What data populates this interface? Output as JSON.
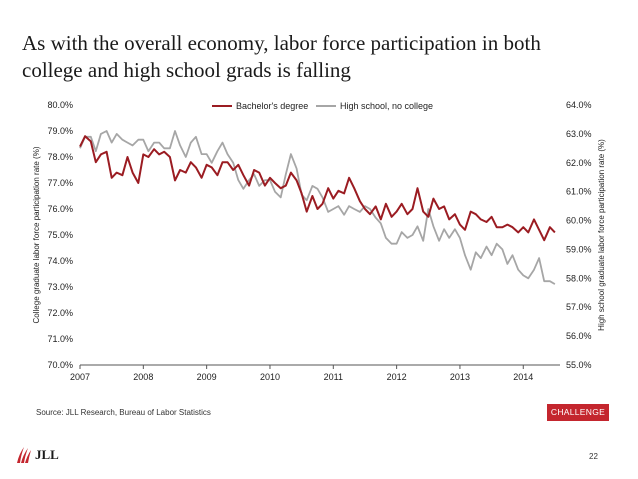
{
  "slide": {
    "title": "As with the overall economy, labor force participation in both\ncollege and high school grads is falling",
    "source": "Source: JLL Research, Bureau of Labor Statistics",
    "badge": "CHALLENGE",
    "logo_text": "JLL",
    "page_number": "22"
  },
  "chart_data": {
    "type": "line",
    "title": "",
    "xlabel": "",
    "ylabel_left": "College graduate labor force participation rate (%)",
    "ylabel_right": "High school graduate labor force participation rate (%)",
    "x_ticks": [
      "2007",
      "2008",
      "2009",
      "2010",
      "2011",
      "2012",
      "2013",
      "2014"
    ],
    "y_left_range": [
      70,
      80
    ],
    "y_left_ticks": [
      "70.0%",
      "71.0%",
      "72.0%",
      "73.0%",
      "74.0%",
      "75.0%",
      "76.0%",
      "77.0%",
      "78.0%",
      "79.0%",
      "80.0%"
    ],
    "y_right_range": [
      55,
      64
    ],
    "y_right_ticks": [
      "55.0%",
      "56.0%",
      "57.0%",
      "58.0%",
      "59.0%",
      "60.0%",
      "61.0%",
      "62.0%",
      "63.0%",
      "64.0%"
    ],
    "grid": false,
    "legend_position": "top-center",
    "series": [
      {
        "name": "Bachelor's degree",
        "axis": "left",
        "color": "#9b1c22",
        "points": [
          [
            2007.0,
            78.4
          ],
          [
            2007.08,
            78.8
          ],
          [
            2007.17,
            78.6
          ],
          [
            2007.25,
            77.8
          ],
          [
            2007.33,
            78.1
          ],
          [
            2007.42,
            78.2
          ],
          [
            2007.5,
            77.2
          ],
          [
            2007.58,
            77.4
          ],
          [
            2007.67,
            77.3
          ],
          [
            2007.75,
            78.0
          ],
          [
            2007.83,
            77.4
          ],
          [
            2007.92,
            77.0
          ],
          [
            2008.0,
            78.1
          ],
          [
            2008.08,
            78.0
          ],
          [
            2008.17,
            78.3
          ],
          [
            2008.25,
            78.1
          ],
          [
            2008.33,
            78.2
          ],
          [
            2008.42,
            78.0
          ],
          [
            2008.5,
            77.1
          ],
          [
            2008.58,
            77.5
          ],
          [
            2008.67,
            77.4
          ],
          [
            2008.75,
            77.8
          ],
          [
            2008.83,
            77.6
          ],
          [
            2008.92,
            77.2
          ],
          [
            2009.0,
            77.7
          ],
          [
            2009.08,
            77.6
          ],
          [
            2009.17,
            77.3
          ],
          [
            2009.25,
            77.8
          ],
          [
            2009.33,
            77.8
          ],
          [
            2009.42,
            77.5
          ],
          [
            2009.5,
            77.7
          ],
          [
            2009.58,
            77.3
          ],
          [
            2009.67,
            76.9
          ],
          [
            2009.75,
            77.5
          ],
          [
            2009.83,
            77.4
          ],
          [
            2009.92,
            76.9
          ],
          [
            2010.0,
            77.2
          ],
          [
            2010.08,
            77.0
          ],
          [
            2010.17,
            76.8
          ],
          [
            2010.25,
            76.9
          ],
          [
            2010.33,
            77.4
          ],
          [
            2010.42,
            77.1
          ],
          [
            2010.5,
            76.6
          ],
          [
            2010.58,
            75.9
          ],
          [
            2010.67,
            76.5
          ],
          [
            2010.75,
            76.0
          ],
          [
            2010.83,
            76.2
          ],
          [
            2010.92,
            76.8
          ],
          [
            2011.0,
            76.4
          ],
          [
            2011.08,
            76.7
          ],
          [
            2011.17,
            76.6
          ],
          [
            2011.25,
            77.2
          ],
          [
            2011.33,
            76.8
          ],
          [
            2011.42,
            76.3
          ],
          [
            2011.5,
            76.0
          ],
          [
            2011.58,
            75.8
          ],
          [
            2011.67,
            76.1
          ],
          [
            2011.75,
            75.6
          ],
          [
            2011.83,
            76.2
          ],
          [
            2011.92,
            75.7
          ],
          [
            2012.0,
            75.9
          ],
          [
            2012.08,
            76.2
          ],
          [
            2012.17,
            75.8
          ],
          [
            2012.25,
            76.0
          ],
          [
            2012.33,
            76.8
          ],
          [
            2012.42,
            75.9
          ],
          [
            2012.5,
            75.7
          ],
          [
            2012.58,
            76.4
          ],
          [
            2012.67,
            76.0
          ],
          [
            2012.75,
            76.1
          ],
          [
            2012.83,
            75.6
          ],
          [
            2012.92,
            75.8
          ],
          [
            2013.0,
            75.4
          ],
          [
            2013.08,
            75.2
          ],
          [
            2013.17,
            75.9
          ],
          [
            2013.25,
            75.8
          ],
          [
            2013.33,
            75.6
          ],
          [
            2013.42,
            75.5
          ],
          [
            2013.5,
            75.7
          ],
          [
            2013.58,
            75.3
          ],
          [
            2013.67,
            75.3
          ],
          [
            2013.75,
            75.4
          ],
          [
            2013.83,
            75.3
          ],
          [
            2013.92,
            75.1
          ],
          [
            2014.0,
            75.3
          ],
          [
            2014.08,
            75.1
          ],
          [
            2014.17,
            75.6
          ],
          [
            2014.25,
            75.2
          ],
          [
            2014.33,
            74.8
          ],
          [
            2014.42,
            75.3
          ],
          [
            2014.5,
            75.1
          ]
        ]
      },
      {
        "name": "High school, no college",
        "axis": "right",
        "color": "#a6a6a6",
        "points": [
          [
            2007.0,
            62.5
          ],
          [
            2007.08,
            62.9
          ],
          [
            2007.17,
            62.9
          ],
          [
            2007.25,
            62.4
          ],
          [
            2007.33,
            63.0
          ],
          [
            2007.42,
            63.1
          ],
          [
            2007.5,
            62.7
          ],
          [
            2007.58,
            63.0
          ],
          [
            2007.67,
            62.8
          ],
          [
            2007.75,
            62.7
          ],
          [
            2007.83,
            62.6
          ],
          [
            2007.92,
            62.8
          ],
          [
            2008.0,
            62.8
          ],
          [
            2008.08,
            62.4
          ],
          [
            2008.17,
            62.7
          ],
          [
            2008.25,
            62.7
          ],
          [
            2008.33,
            62.5
          ],
          [
            2008.42,
            62.5
          ],
          [
            2008.5,
            63.1
          ],
          [
            2008.58,
            62.6
          ],
          [
            2008.67,
            62.2
          ],
          [
            2008.75,
            62.7
          ],
          [
            2008.83,
            62.9
          ],
          [
            2008.92,
            62.3
          ],
          [
            2009.0,
            62.3
          ],
          [
            2009.08,
            62.0
          ],
          [
            2009.17,
            62.4
          ],
          [
            2009.25,
            62.7
          ],
          [
            2009.33,
            62.3
          ],
          [
            2009.42,
            62.0
          ],
          [
            2009.5,
            61.4
          ],
          [
            2009.58,
            61.1
          ],
          [
            2009.67,
            61.4
          ],
          [
            2009.75,
            61.6
          ],
          [
            2009.83,
            61.2
          ],
          [
            2009.92,
            61.4
          ],
          [
            2010.0,
            61.4
          ],
          [
            2010.08,
            61.0
          ],
          [
            2010.17,
            60.8
          ],
          [
            2010.25,
            61.6
          ],
          [
            2010.33,
            62.3
          ],
          [
            2010.42,
            61.8
          ],
          [
            2010.5,
            60.9
          ],
          [
            2010.58,
            60.7
          ],
          [
            2010.67,
            61.2
          ],
          [
            2010.75,
            61.1
          ],
          [
            2010.83,
            60.8
          ],
          [
            2010.92,
            60.3
          ],
          [
            2011.0,
            60.4
          ],
          [
            2011.08,
            60.5
          ],
          [
            2011.17,
            60.2
          ],
          [
            2011.25,
            60.5
          ],
          [
            2011.33,
            60.4
          ],
          [
            2011.42,
            60.3
          ],
          [
            2011.5,
            60.5
          ],
          [
            2011.58,
            60.4
          ],
          [
            2011.67,
            60.1
          ],
          [
            2011.75,
            59.9
          ],
          [
            2011.83,
            59.4
          ],
          [
            2011.92,
            59.2
          ],
          [
            2012.0,
            59.2
          ],
          [
            2012.08,
            59.6
          ],
          [
            2012.17,
            59.4
          ],
          [
            2012.25,
            59.5
          ],
          [
            2012.33,
            59.8
          ],
          [
            2012.42,
            59.3
          ],
          [
            2012.5,
            60.4
          ],
          [
            2012.58,
            59.8
          ],
          [
            2012.67,
            59.3
          ],
          [
            2012.75,
            59.7
          ],
          [
            2012.83,
            59.4
          ],
          [
            2012.92,
            59.7
          ],
          [
            2013.0,
            59.4
          ],
          [
            2013.08,
            58.8
          ],
          [
            2013.17,
            58.3
          ],
          [
            2013.25,
            58.9
          ],
          [
            2013.33,
            58.7
          ],
          [
            2013.42,
            59.1
          ],
          [
            2013.5,
            58.8
          ],
          [
            2013.58,
            59.2
          ],
          [
            2013.67,
            59.0
          ],
          [
            2013.75,
            58.5
          ],
          [
            2013.83,
            58.8
          ],
          [
            2013.92,
            58.3
          ],
          [
            2014.0,
            58.1
          ],
          [
            2014.08,
            58.0
          ],
          [
            2014.17,
            58.3
          ],
          [
            2014.25,
            58.7
          ],
          [
            2014.33,
            57.9
          ],
          [
            2014.42,
            57.9
          ],
          [
            2014.5,
            57.8
          ]
        ]
      }
    ]
  }
}
